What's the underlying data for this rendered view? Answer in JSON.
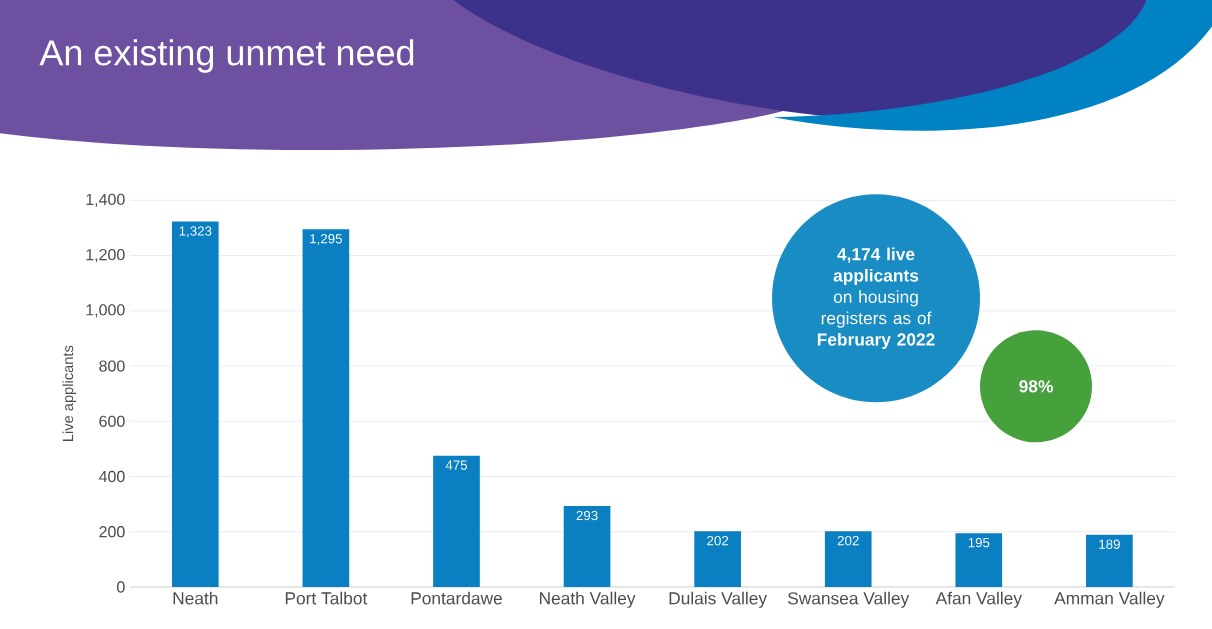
{
  "chart_data": {
    "type": "bar",
    "title": "An existing unmet need",
    "ylabel": "Live applicants",
    "categories": [
      "Neath",
      "Port Talbot",
      "Pontardawe",
      "Neath Valley",
      "Dulais Valley",
      "Swansea Valley",
      "Afan Valley",
      "Amman Valley"
    ],
    "values": [
      1323,
      1295,
      475,
      293,
      202,
      202,
      195,
      189
    ],
    "value_labels": [
      "1,323",
      "1,295",
      "475",
      "293",
      "202",
      "202",
      "195",
      "189"
    ],
    "color": "#0a7fc1",
    "ylim": [
      0,
      1400
    ],
    "yticks": [
      0,
      200,
      400,
      600,
      800,
      {
        "value": 1000,
        "label": "1,000"
      },
      {
        "value": 1200,
        "label": "1,200"
      },
      {
        "value": 1400,
        "label": "1,400"
      }
    ],
    "grid": "y",
    "annotations": [
      "**4,174 live applicants** on housing registers as of **February 2022**",
      "**98%**"
    ]
  }
}
